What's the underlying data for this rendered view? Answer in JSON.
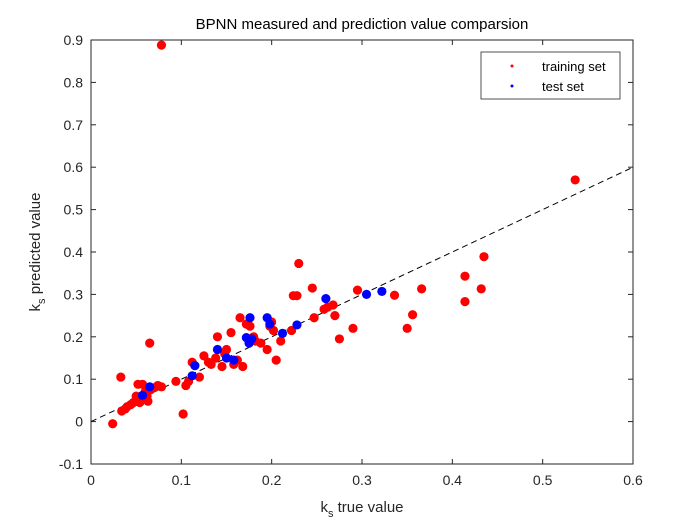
{
  "chart_data": {
    "type": "scatter",
    "title": "BPNN measured and prediction value comparsion",
    "xlabel_main": "k",
    "xlabel_sub": "s",
    "xlabel_rest": " true value",
    "ylabel_main": "k",
    "ylabel_sub": "s",
    "ylabel_rest": " predicted value",
    "xlim": [
      0,
      0.6
    ],
    "ylim": [
      -0.1,
      0.9
    ],
    "xticks": [
      0,
      0.1,
      0.2,
      0.3,
      0.4,
      0.5,
      0.6
    ],
    "yticks": [
      -0.1,
      0,
      0.1,
      0.2,
      0.3,
      0.4,
      0.5,
      0.6,
      0.7,
      0.8,
      0.9
    ],
    "xtick_labels": [
      "0",
      "0.1",
      "0.2",
      "0.3",
      "0.4",
      "0.5",
      "0.6"
    ],
    "ytick_labels": [
      "-0.1",
      "0",
      "0.1",
      "0.2",
      "0.3",
      "0.4",
      "0.5",
      "0.6",
      "0.7",
      "0.8",
      "0.9"
    ],
    "legend_location": "top-right",
    "reference_line": {
      "style": "dashed",
      "color": "#000000",
      "points": [
        [
          0,
          0
        ],
        [
          0.6,
          0.6
        ]
      ]
    },
    "series": [
      {
        "name": "training set",
        "color": "#ff0000",
        "points": [
          [
            0.078,
            0.888
          ],
          [
            0.536,
            0.57
          ],
          [
            0.024,
            -0.005
          ],
          [
            0.033,
            0.105
          ],
          [
            0.034,
            0.025
          ],
          [
            0.038,
            0.03
          ],
          [
            0.04,
            0.035
          ],
          [
            0.044,
            0.04
          ],
          [
            0.047,
            0.045
          ],
          [
            0.05,
            0.06
          ],
          [
            0.052,
            0.088
          ],
          [
            0.054,
            0.045
          ],
          [
            0.057,
            0.088
          ],
          [
            0.06,
            0.07
          ],
          [
            0.062,
            0.06
          ],
          [
            0.063,
            0.048
          ],
          [
            0.065,
            0.185
          ],
          [
            0.066,
            0.075
          ],
          [
            0.07,
            0.08
          ],
          [
            0.074,
            0.085
          ],
          [
            0.078,
            0.082
          ],
          [
            0.094,
            0.095
          ],
          [
            0.102,
            0.018
          ],
          [
            0.105,
            0.085
          ],
          [
            0.108,
            0.095
          ],
          [
            0.112,
            0.14
          ],
          [
            0.12,
            0.105
          ],
          [
            0.125,
            0.155
          ],
          [
            0.13,
            0.14
          ],
          [
            0.133,
            0.135
          ],
          [
            0.138,
            0.15
          ],
          [
            0.14,
            0.2
          ],
          [
            0.145,
            0.13
          ],
          [
            0.148,
            0.16
          ],
          [
            0.15,
            0.17
          ],
          [
            0.155,
            0.21
          ],
          [
            0.158,
            0.135
          ],
          [
            0.162,
            0.145
          ],
          [
            0.165,
            0.245
          ],
          [
            0.168,
            0.13
          ],
          [
            0.172,
            0.23
          ],
          [
            0.176,
            0.225
          ],
          [
            0.18,
            0.2
          ],
          [
            0.182,
            0.19
          ],
          [
            0.188,
            0.185
          ],
          [
            0.195,
            0.17
          ],
          [
            0.198,
            0.225
          ],
          [
            0.2,
            0.235
          ],
          [
            0.202,
            0.215
          ],
          [
            0.205,
            0.145
          ],
          [
            0.21,
            0.19
          ],
          [
            0.222,
            0.215
          ],
          [
            0.224,
            0.297
          ],
          [
            0.228,
            0.297
          ],
          [
            0.23,
            0.373
          ],
          [
            0.245,
            0.315
          ],
          [
            0.247,
            0.245
          ],
          [
            0.258,
            0.265
          ],
          [
            0.262,
            0.27
          ],
          [
            0.268,
            0.275
          ],
          [
            0.27,
            0.25
          ],
          [
            0.275,
            0.195
          ],
          [
            0.29,
            0.22
          ],
          [
            0.295,
            0.31
          ],
          [
            0.336,
            0.298
          ],
          [
            0.35,
            0.22
          ],
          [
            0.356,
            0.252
          ],
          [
            0.366,
            0.313
          ],
          [
            0.414,
            0.343
          ],
          [
            0.414,
            0.283
          ],
          [
            0.432,
            0.313
          ],
          [
            0.435,
            0.389
          ]
        ]
      },
      {
        "name": "test set",
        "color": "#0000ff",
        "points": [
          [
            0.057,
            0.062
          ],
          [
            0.065,
            0.082
          ],
          [
            0.112,
            0.108
          ],
          [
            0.115,
            0.132
          ],
          [
            0.14,
            0.17
          ],
          [
            0.15,
            0.15
          ],
          [
            0.158,
            0.145
          ],
          [
            0.172,
            0.198
          ],
          [
            0.175,
            0.185
          ],
          [
            0.176,
            0.245
          ],
          [
            0.178,
            0.195
          ],
          [
            0.195,
            0.245
          ],
          [
            0.198,
            0.23
          ],
          [
            0.212,
            0.208
          ],
          [
            0.228,
            0.228
          ],
          [
            0.26,
            0.29
          ],
          [
            0.305,
            0.3
          ],
          [
            0.322,
            0.307
          ]
        ]
      }
    ]
  }
}
